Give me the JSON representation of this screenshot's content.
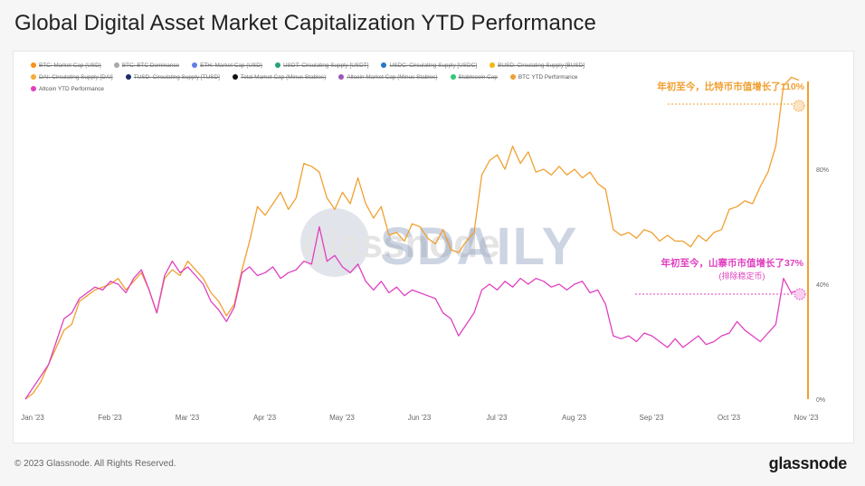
{
  "page": {
    "title": "Global Digital Asset Market Capitalization YTD Performance",
    "footer": "© 2023 Glassnode. All Rights Reserved.",
    "brand": "glassnode"
  },
  "legend": [
    {
      "label": "BTC: Market Cap (USD)",
      "color": "#f7931a",
      "active": false
    },
    {
      "label": "BTC: BTC Dominance",
      "color": "#aaaaaa",
      "active": false
    },
    {
      "label": "ETH: Market Cap (USD)",
      "color": "#627eea",
      "active": false
    },
    {
      "label": "USDT: Circulating Supply [USDT]",
      "color": "#26a17b",
      "active": false
    },
    {
      "label": "USDC: Circulating Supply [USDC]",
      "color": "#2775ca",
      "active": false
    },
    {
      "label": "BUSD: Circulating Supply [BUSD]",
      "color": "#f0b90b",
      "active": false
    },
    {
      "label": "DAI: Circulating Supply [DAI]",
      "color": "#f5ac37",
      "active": false
    },
    {
      "label": "TUSD: Circulating Supply [TUSD]",
      "color": "#1a2b6b",
      "active": false
    },
    {
      "label": "Total Market Cap (Minus Stables)",
      "color": "#111111",
      "active": false
    },
    {
      "label": "Altcoin Market Cap (Minus Stables)",
      "color": "#9b59b6",
      "active": false
    },
    {
      "label": "Stablecoin Cap",
      "color": "#2ecc71",
      "active": false
    },
    {
      "label": "BTC YTD Performance",
      "color": "#f0a030",
      "active": true
    },
    {
      "label": "Altcoin YTD Performance",
      "color": "#e040c0",
      "active": true
    }
  ],
  "watermarks": {
    "brand": "glassnode",
    "sdaily": "SDAILY"
  },
  "annotations": {
    "btc": "年初至今，比特币市值增长了110%",
    "alt_line1": "年初至今，山寨币市值增长了37%",
    "alt_line2": "(排除稳定币)"
  },
  "chart_data": {
    "type": "line",
    "title": "Global Digital Asset Market Capitalization YTD Performance",
    "x_ticks": [
      "Jan '23",
      "Feb '23",
      "Mar '23",
      "Apr '23",
      "May '23",
      "Jun '23",
      "Jul '23",
      "Aug '23",
      "Sep '23",
      "Oct '23",
      "Nov '23"
    ],
    "y_ticks": [
      "0%",
      "40%",
      "80%"
    ],
    "y_tick_values": [
      0,
      40,
      80
    ],
    "ylim": [
      0,
      120
    ],
    "grid": false,
    "legend_position": "top-left",
    "series": [
      {
        "name": "BTC YTD Performance",
        "color": "#f0a030",
        "points": [
          [
            0,
            0
          ],
          [
            0.1,
            2
          ],
          [
            0.2,
            6
          ],
          [
            0.3,
            12
          ],
          [
            0.4,
            18
          ],
          [
            0.5,
            24
          ],
          [
            0.6,
            26
          ],
          [
            0.7,
            34
          ],
          [
            0.8,
            36
          ],
          [
            0.9,
            38
          ],
          [
            1.0,
            39
          ],
          [
            1.1,
            40
          ],
          [
            1.2,
            42
          ],
          [
            1.3,
            38
          ],
          [
            1.4,
            41
          ],
          [
            1.5,
            44
          ],
          [
            1.6,
            38
          ],
          [
            1.7,
            30
          ],
          [
            1.8,
            42
          ],
          [
            1.9,
            45
          ],
          [
            2.0,
            43
          ],
          [
            2.1,
            48
          ],
          [
            2.2,
            45
          ],
          [
            2.3,
            42
          ],
          [
            2.4,
            37
          ],
          [
            2.5,
            34
          ],
          [
            2.6,
            29
          ],
          [
            2.7,
            33
          ],
          [
            2.8,
            45
          ],
          [
            2.9,
            55
          ],
          [
            3.0,
            67
          ],
          [
            3.1,
            64
          ],
          [
            3.2,
            68
          ],
          [
            3.3,
            72
          ],
          [
            3.4,
            66
          ],
          [
            3.5,
            70
          ],
          [
            3.6,
            82
          ],
          [
            3.7,
            81
          ],
          [
            3.8,
            79
          ],
          [
            3.9,
            70
          ],
          [
            4.0,
            66
          ],
          [
            4.1,
            72
          ],
          [
            4.2,
            68
          ],
          [
            4.3,
            77
          ],
          [
            4.4,
            68
          ],
          [
            4.5,
            63
          ],
          [
            4.6,
            67
          ],
          [
            4.7,
            57
          ],
          [
            4.8,
            58
          ],
          [
            4.9,
            55
          ],
          [
            5.0,
            61
          ],
          [
            5.1,
            60
          ],
          [
            5.2,
            56
          ],
          [
            5.3,
            54
          ],
          [
            5.4,
            59
          ],
          [
            5.5,
            52
          ],
          [
            5.6,
            51
          ],
          [
            5.7,
            55
          ],
          [
            5.8,
            58
          ],
          [
            5.9,
            78
          ],
          [
            6.0,
            83
          ],
          [
            6.1,
            85
          ],
          [
            6.2,
            80
          ],
          [
            6.3,
            88
          ],
          [
            6.4,
            82
          ],
          [
            6.5,
            86
          ],
          [
            6.6,
            79
          ],
          [
            6.7,
            80
          ],
          [
            6.8,
            78
          ],
          [
            6.9,
            81
          ],
          [
            7.0,
            78
          ],
          [
            7.1,
            80
          ],
          [
            7.2,
            77
          ],
          [
            7.3,
            79
          ],
          [
            7.4,
            75
          ],
          [
            7.5,
            73
          ],
          [
            7.6,
            59
          ],
          [
            7.7,
            57
          ],
          [
            7.8,
            58
          ],
          [
            7.9,
            56
          ],
          [
            8.0,
            59
          ],
          [
            8.1,
            58
          ],
          [
            8.2,
            55
          ],
          [
            8.3,
            57
          ],
          [
            8.4,
            55
          ],
          [
            8.5,
            55
          ],
          [
            8.6,
            53
          ],
          [
            8.7,
            57
          ],
          [
            8.8,
            55
          ],
          [
            8.9,
            58
          ],
          [
            9.0,
            59
          ],
          [
            9.1,
            66
          ],
          [
            9.2,
            67
          ],
          [
            9.3,
            69
          ],
          [
            9.4,
            68
          ],
          [
            9.5,
            74
          ],
          [
            9.6,
            79
          ],
          [
            9.7,
            88
          ],
          [
            9.8,
            109
          ],
          [
            9.9,
            112
          ],
          [
            10.0,
            111
          ]
        ]
      },
      {
        "name": "Altcoin YTD Performance",
        "color": "#e040c0",
        "points": [
          [
            0,
            0
          ],
          [
            0.1,
            4
          ],
          [
            0.2,
            8
          ],
          [
            0.3,
            12
          ],
          [
            0.4,
            20
          ],
          [
            0.5,
            28
          ],
          [
            0.6,
            30
          ],
          [
            0.7,
            35
          ],
          [
            0.8,
            37
          ],
          [
            0.9,
            39
          ],
          [
            1.0,
            38
          ],
          [
            1.1,
            41
          ],
          [
            1.2,
            40
          ],
          [
            1.3,
            37
          ],
          [
            1.4,
            42
          ],
          [
            1.5,
            45
          ],
          [
            1.6,
            38
          ],
          [
            1.7,
            30
          ],
          [
            1.8,
            43
          ],
          [
            1.9,
            48
          ],
          [
            2.0,
            44
          ],
          [
            2.1,
            46
          ],
          [
            2.2,
            43
          ],
          [
            2.3,
            40
          ],
          [
            2.4,
            34
          ],
          [
            2.5,
            31
          ],
          [
            2.6,
            27
          ],
          [
            2.7,
            32
          ],
          [
            2.8,
            44
          ],
          [
            2.9,
            46
          ],
          [
            3.0,
            43
          ],
          [
            3.1,
            44
          ],
          [
            3.2,
            46
          ],
          [
            3.3,
            42
          ],
          [
            3.4,
            44
          ],
          [
            3.5,
            45
          ],
          [
            3.6,
            48
          ],
          [
            3.7,
            47
          ],
          [
            3.8,
            60
          ],
          [
            3.9,
            48
          ],
          [
            4.0,
            50
          ],
          [
            4.1,
            46
          ],
          [
            4.2,
            44
          ],
          [
            4.3,
            47
          ],
          [
            4.4,
            41
          ],
          [
            4.5,
            38
          ],
          [
            4.6,
            41
          ],
          [
            4.7,
            37
          ],
          [
            4.8,
            39
          ],
          [
            4.9,
            36
          ],
          [
            5.0,
            38
          ],
          [
            5.1,
            37
          ],
          [
            5.2,
            36
          ],
          [
            5.3,
            35
          ],
          [
            5.4,
            30
          ],
          [
            5.5,
            28
          ],
          [
            5.6,
            22
          ],
          [
            5.7,
            26
          ],
          [
            5.8,
            30
          ],
          [
            5.9,
            38
          ],
          [
            6.0,
            40
          ],
          [
            6.1,
            38
          ],
          [
            6.2,
            41
          ],
          [
            6.3,
            39
          ],
          [
            6.4,
            42
          ],
          [
            6.5,
            40
          ],
          [
            6.6,
            42
          ],
          [
            6.7,
            41
          ],
          [
            6.8,
            39
          ],
          [
            6.9,
            40
          ],
          [
            7.0,
            38
          ],
          [
            7.1,
            40
          ],
          [
            7.2,
            41
          ],
          [
            7.3,
            37
          ],
          [
            7.4,
            38
          ],
          [
            7.5,
            33
          ],
          [
            7.6,
            22
          ],
          [
            7.7,
            21
          ],
          [
            7.8,
            22
          ],
          [
            7.9,
            20
          ],
          [
            8.0,
            23
          ],
          [
            8.1,
            22
          ],
          [
            8.2,
            20
          ],
          [
            8.3,
            18
          ],
          [
            8.4,
            21
          ],
          [
            8.5,
            18
          ],
          [
            8.6,
            20
          ],
          [
            8.7,
            22
          ],
          [
            8.8,
            19
          ],
          [
            8.9,
            20
          ],
          [
            9.0,
            22
          ],
          [
            9.1,
            23
          ],
          [
            9.2,
            27
          ],
          [
            9.3,
            24
          ],
          [
            9.4,
            22
          ],
          [
            9.5,
            20
          ],
          [
            9.6,
            23
          ],
          [
            9.7,
            26
          ],
          [
            9.8,
            42
          ],
          [
            9.9,
            37
          ],
          [
            10.0,
            38
          ]
        ]
      }
    ]
  }
}
